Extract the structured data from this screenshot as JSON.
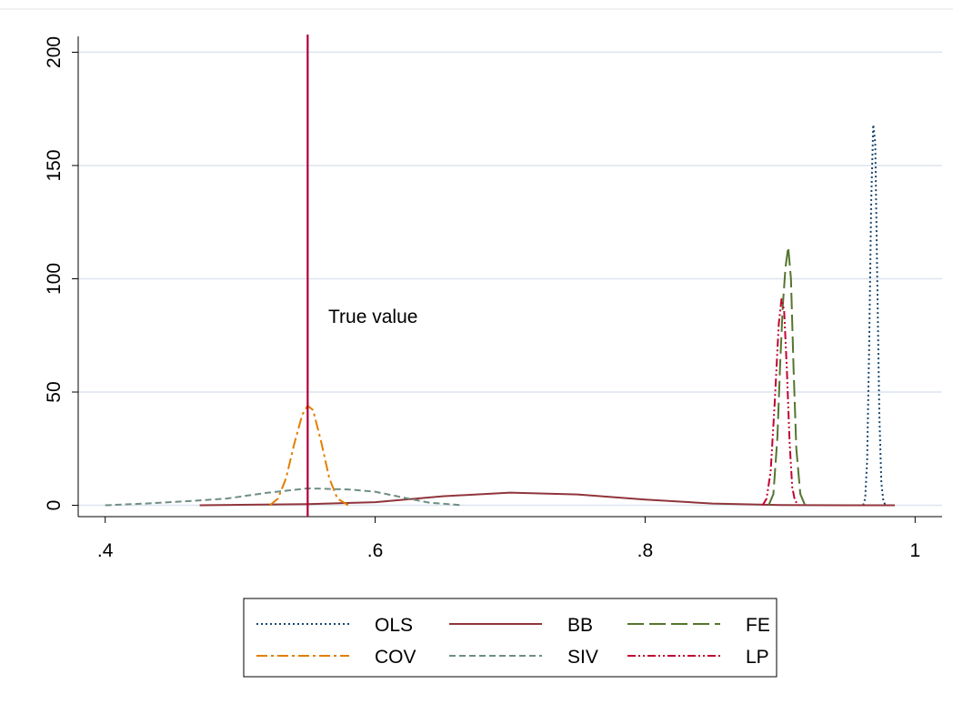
{
  "chart_data": {
    "type": "line",
    "title": "",
    "xlabel": "",
    "ylabel": "",
    "xlim": [
      0.38,
      1.02
    ],
    "ylim": [
      -5,
      207
    ],
    "x_ticks": [
      0.4,
      0.6,
      0.8,
      1.0
    ],
    "x_tick_labels": [
      ".4",
      ".6",
      ".8",
      "1"
    ],
    "y_ticks": [
      0,
      50,
      100,
      150,
      200
    ],
    "y_tick_labels": [
      "0",
      "50",
      "100",
      "150",
      "200"
    ],
    "grid": "horizontal",
    "legend_position": "bottom",
    "reference_line": {
      "x": 0.55,
      "color": "#b00038"
    },
    "annotation": {
      "text": "True value",
      "x": 0.569,
      "y": 82
    },
    "series": [
      {
        "name": "OLS",
        "color": "#1a476f",
        "dash": "dot",
        "x": [
          0.9615,
          0.963,
          0.9645,
          0.966,
          0.9675,
          0.969,
          0.9705,
          0.972,
          0.9735,
          0.975,
          0.9765,
          0.978
        ],
        "y": [
          0,
          3,
          20,
          70,
          135,
          168,
          160,
          100,
          40,
          10,
          2,
          0
        ]
      },
      {
        "name": "BB",
        "color": "#90353b",
        "dash": "solid",
        "x": [
          0.47,
          0.5,
          0.55,
          0.6,
          0.65,
          0.7,
          0.75,
          0.8,
          0.85,
          0.9,
          0.95,
          0.985
        ],
        "y": [
          0,
          0.2,
          0.5,
          1.4,
          4,
          5.6,
          4.8,
          2.5,
          0.8,
          0.1,
          0,
          0
        ]
      },
      {
        "name": "FE",
        "color": "#55752f",
        "dash": "longdash",
        "x": [
          0.8915,
          0.895,
          0.898,
          0.9,
          0.902,
          0.904,
          0.906,
          0.908,
          0.91,
          0.912,
          0.915,
          0.9185
        ],
        "y": [
          0,
          5,
          30,
          62,
          88,
          105,
          114,
          100,
          60,
          25,
          5,
          0
        ]
      },
      {
        "name": "COV",
        "color": "#e37e00",
        "dash": "dashdot",
        "x": [
          0.522,
          0.528,
          0.534,
          0.54,
          0.546,
          0.55,
          0.554,
          0.56,
          0.566,
          0.572,
          0.58
        ],
        "y": [
          0,
          3,
          12,
          27,
          40,
          44,
          42,
          28,
          12,
          3,
          0
        ]
      },
      {
        "name": "SIV",
        "color": "#6e8e84",
        "dash": "shortdash",
        "x": [
          0.4,
          0.43,
          0.46,
          0.49,
          0.52,
          0.55,
          0.58,
          0.6,
          0.62,
          0.64,
          0.665
        ],
        "y": [
          0,
          0.8,
          1.8,
          3,
          5.5,
          7.5,
          7,
          6,
          3.5,
          1.2,
          0
        ]
      },
      {
        "name": "LP",
        "color": "#c10534",
        "dash": "dashdotdot",
        "x": [
          0.887,
          0.89,
          0.893,
          0.896,
          0.899,
          0.901,
          0.903,
          0.905,
          0.907,
          0.909,
          0.911,
          0.914
        ],
        "y": [
          0,
          3,
          15,
          45,
          80,
          91,
          86,
          60,
          28,
          8,
          2,
          0
        ]
      }
    ]
  },
  "annotation_text": "True value"
}
